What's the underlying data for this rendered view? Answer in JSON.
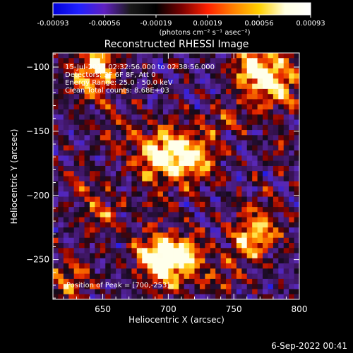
{
  "colorbar": {
    "ticks": [
      "-0.00093",
      "-0.00056",
      "-0.00019",
      "0.00019",
      "0.00056",
      "0.00093"
    ],
    "units": "(photons cm⁻² s⁻¹ asec⁻²)",
    "colors": [
      "#0000d8",
      "#2020ff",
      "#6020c0",
      "#1a1a1a",
      "#000000",
      "#7a0000",
      "#ff2000",
      "#ff8000",
      "#ffd000",
      "#ffffe0",
      "#ffffff"
    ]
  },
  "annotations": {
    "time_range": "15-Jul-2017 02:32:56.000 to 02:38:56.000",
    "detectors": "Detectors: 3F 6F 8F, Att 0",
    "energy": "Energy Range: 25.0 - 50.0 keV",
    "clean": "Clean    Total counts: 8.68E+03",
    "peak": "Position of Peak = [700,-253]"
  },
  "footer_date": "6-Sep-2022 00:41",
  "chart_data": {
    "type": "heatmap",
    "title": "Reconstructed RHESSI Image",
    "xlabel": "Heliocentric X (arcsec)",
    "ylabel": "Heliocentric Y (arcsec)",
    "xlim": [
      612,
      800
    ],
    "ylim": [
      -281,
      -89
    ],
    "x_ticks": [
      650,
      700,
      750,
      800
    ],
    "y_ticks": [
      -100,
      -150,
      -200,
      -250
    ],
    "clim": [
      -0.00093,
      0.00093
    ],
    "grid_step_arcsec": 4,
    "peak": [
      700,
      -253
    ],
    "sources": [
      {
        "x": 700,
        "y": -253,
        "amp": 1.0,
        "width": 14
      },
      {
        "x": 688,
        "y": -245,
        "amp": 0.55,
        "width": 10
      },
      {
        "x": 715,
        "y": -243,
        "amp": 0.45,
        "width": 10
      },
      {
        "x": 705,
        "y": -168,
        "amp": 0.65,
        "width": 18
      },
      {
        "x": 690,
        "y": -170,
        "amp": 0.55,
        "width": 12
      },
      {
        "x": 722,
        "y": -170,
        "amp": 0.5,
        "width": 12
      },
      {
        "x": 780,
        "y": -112,
        "amp": 0.75,
        "width": 16
      },
      {
        "x": 765,
        "y": -100,
        "amp": 0.6,
        "width": 12
      },
      {
        "x": 640,
        "y": -110,
        "amp": 0.6,
        "width": 14
      },
      {
        "x": 650,
        "y": -95,
        "amp": 0.5,
        "width": 10
      },
      {
        "x": 770,
        "y": -225,
        "amp": 0.55,
        "width": 14
      },
      {
        "x": 760,
        "y": -238,
        "amp": 0.5,
        "width": 10
      },
      {
        "x": 650,
        "y": -215,
        "amp": 0.45,
        "width": 12
      },
      {
        "x": 635,
        "y": -190,
        "amp": 0.35,
        "width": 10
      },
      {
        "x": 625,
        "y": -265,
        "amp": 0.55,
        "width": 12
      },
      {
        "x": 660,
        "y": -150,
        "amp": 0.35,
        "width": 10
      },
      {
        "x": 740,
        "y": -265,
        "amp": 0.35,
        "width": 10
      },
      {
        "x": 745,
        "y": -140,
        "amp": 0.3,
        "width": 10
      },
      {
        "x": 785,
        "y": -160,
        "amp": 0.3,
        "width": 8
      },
      {
        "x": 690,
        "y": -210,
        "amp": 0.25,
        "width": 8
      }
    ]
  }
}
